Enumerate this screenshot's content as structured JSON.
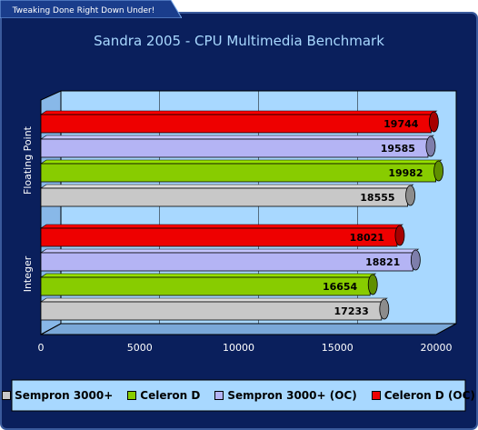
{
  "banner": {
    "text": "Tweaking Done Right Down Under!"
  },
  "chart_data": {
    "type": "bar",
    "orientation": "horizontal",
    "title": "Sandra 2005 - CPU Multimedia Benchmark",
    "categories": [
      "Integer",
      "Floating Point"
    ],
    "series": [
      {
        "name": "Sempron 3000+",
        "values": [
          17233,
          18555
        ],
        "color": "#c8c8c8"
      },
      {
        "name": "Celeron D",
        "values": [
          16654,
          19982
        ],
        "color": "#88cc00"
      },
      {
        "name": "Sempron 3000+ (OC)",
        "values": [
          18821,
          19585
        ],
        "color": "#b4b4f4"
      },
      {
        "name": "Celeron D (OC)",
        "values": [
          18021,
          19744
        ],
        "color": "#ee0000"
      }
    ],
    "xlim": [
      0,
      20000
    ],
    "x_ticks": [
      "0",
      "5000",
      "10000",
      "15000",
      "20000"
    ],
    "legend_position": "bottom",
    "colors": {
      "background": "#0a1f5c",
      "plot_wall": "#a8d8ff",
      "title": "#a8d8ff",
      "axis_text": "#ffffff",
      "legend_bg": "#a8d8ff"
    }
  }
}
